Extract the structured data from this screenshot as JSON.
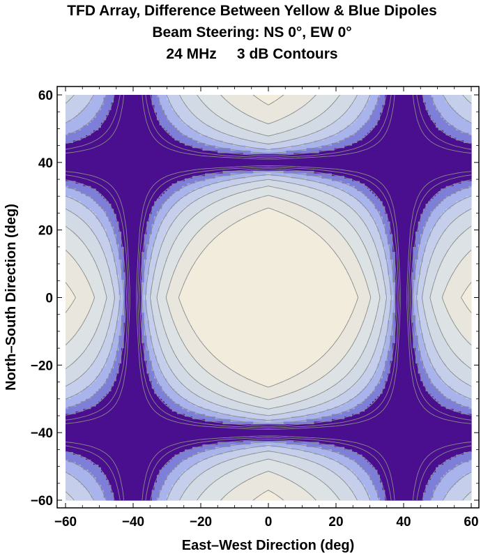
{
  "chart_data": {
    "type": "contour",
    "title_lines": [
      "TFD Array, Difference Between Yellow & Blue Dipoles",
      "Beam Steering: NS 0°, EW 0°",
      "24 MHz     3 dB Contours"
    ],
    "xlabel": "East–West Direction (deg)",
    "ylabel": "North–South Direction (deg)",
    "xlim": [
      -60,
      60
    ],
    "ylim": [
      -60,
      60
    ],
    "xticks": [
      -60,
      -40,
      -20,
      0,
      20,
      40,
      60
    ],
    "yticks": [
      -60,
      -40,
      -20,
      0,
      20,
      40,
      60
    ],
    "xtick_labels": [
      "−60",
      "−40",
      "−20",
      "0",
      "20",
      "40",
      "60"
    ],
    "ytick_labels": [
      "−60",
      "−40",
      "−20",
      "0",
      "20",
      "40",
      "60"
    ],
    "contour_step_db": 3,
    "null_lines_deg": {
      "x": [
        -40,
        40
      ],
      "y": [
        -40,
        40
      ]
    },
    "colors": {
      "level_0": "#f1ecdc",
      "level_1": "#e8e6dd",
      "level_2": "#dde3e4",
      "level_3": "#d2dbe5",
      "level_4": "#c5cfec",
      "level_5": "#aab4ec",
      "level_6": "#7e7fd9",
      "null": "#4a0f8e",
      "contour_line": "#8a8a8a",
      "frame": "#000000"
    }
  }
}
